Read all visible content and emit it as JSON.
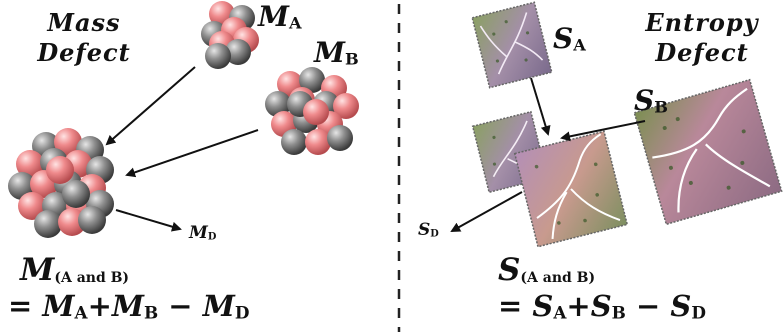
{
  "left": {
    "title_line1": "Mass",
    "title_line2": "Defect",
    "label_a": {
      "main": "M",
      "sub": "A"
    },
    "label_b": {
      "main": "M",
      "sub": "B"
    },
    "label_d": {
      "main": "M",
      "sub": "D"
    },
    "equation_lhs": {
      "main": "M",
      "sub": "(A and B)"
    },
    "equation_rhs": [
      "= ",
      "M",
      "A",
      "+",
      "M",
      "B",
      " − ",
      "M",
      "D"
    ]
  },
  "right": {
    "title_line1": "Entropy",
    "title_line2": "Defect",
    "label_a": {
      "main": "S",
      "sub": "A"
    },
    "label_b": {
      "main": "S",
      "sub": "B"
    },
    "label_d": {
      "main": "S",
      "sub": "D"
    },
    "equation_lhs": {
      "main": "S",
      "sub": "(A and B)"
    },
    "equation_rhs": [
      "= ",
      "S",
      "A",
      "+",
      "S",
      "B",
      " − ",
      "S",
      "D"
    ]
  },
  "colors": {
    "proton": "#ee7f82",
    "neutron": "#8a8a8a",
    "divider": "#222222",
    "arrow": "#111111"
  }
}
